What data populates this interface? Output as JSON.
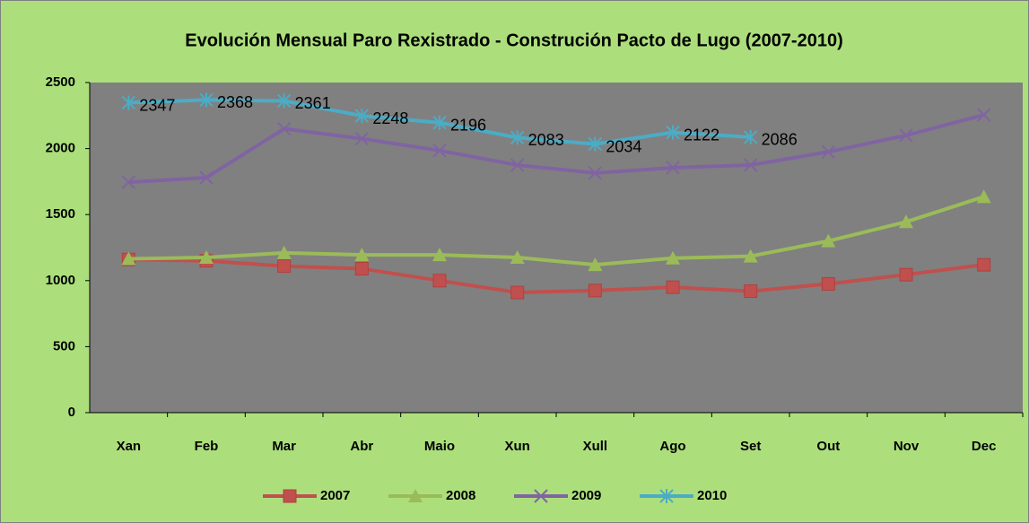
{
  "chart_data": {
    "type": "line",
    "title": "Evolución Mensual Paro Rexistrado - Construción Pacto de Lugo (2007-2010)",
    "categories": [
      "Xan",
      "Feb",
      "Mar",
      "Abr",
      "Maio",
      "Xun",
      "Xull",
      "Ago",
      "Set",
      "Out",
      "Nov",
      "Dec"
    ],
    "series": [
      {
        "name": "2007",
        "color": "#c0504d",
        "marker": "square",
        "values": [
          1160,
          1150,
          1110,
          1090,
          1000,
          910,
          925,
          950,
          920,
          975,
          1045,
          1120
        ]
      },
      {
        "name": "2008",
        "color": "#9bbb59",
        "marker": "triangle",
        "values": [
          1165,
          1175,
          1210,
          1195,
          1195,
          1175,
          1120,
          1170,
          1185,
          1300,
          1445,
          1635
        ]
      },
      {
        "name": "2009",
        "color": "#8064a2",
        "marker": "x",
        "values": [
          1745,
          1780,
          2150,
          2075,
          1985,
          1875,
          1815,
          1855,
          1875,
          1975,
          2100,
          2255
        ]
      },
      {
        "name": "2010",
        "color": "#4bacc6",
        "marker": "star",
        "data_labels": true,
        "values": [
          2347,
          2368,
          2361,
          2248,
          2196,
          2083,
          2034,
          2122,
          2086,
          null,
          null,
          null
        ]
      }
    ],
    "ylim": [
      0,
      2500
    ],
    "yticks": [
      0,
      500,
      1000,
      1500,
      2000,
      2500
    ],
    "grid": false,
    "legend": "bottom"
  }
}
